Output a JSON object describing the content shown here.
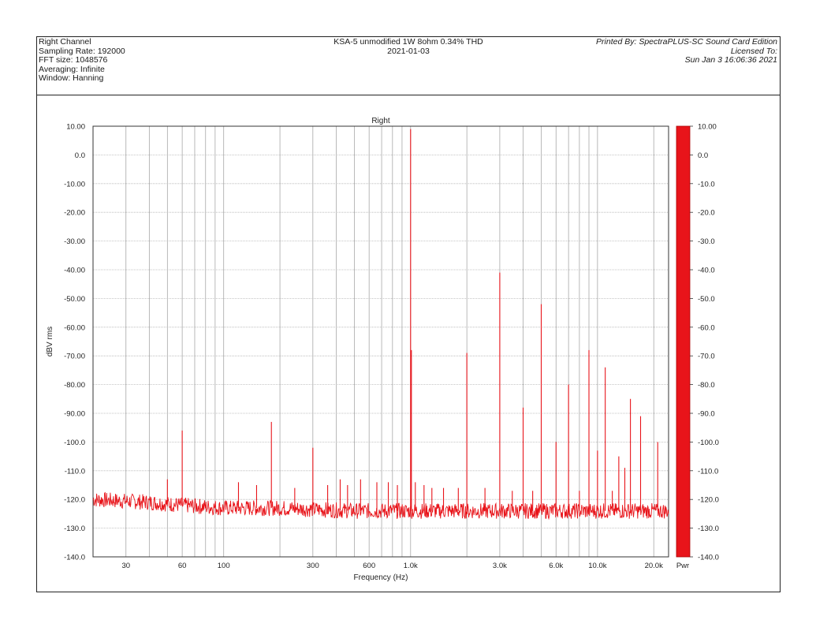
{
  "header": {
    "left": [
      "Right Channel",
      "Sampling Rate: 192000",
      "FFT size: 1048576",
      "Averaging: Infinite",
      "Window: Hanning"
    ],
    "center": [
      "KSA-5 unmodified 1W 8ohm 0.34% THD",
      "2021-01-03"
    ],
    "right": [
      "Printed By: SpectraPLUS-SC Sound Card Edition",
      "Licensed To:",
      "Sun Jan  3 16:06:36 2021"
    ]
  },
  "chart_data": {
    "type": "line",
    "title": "Right",
    "xlabel": "Frequency (Hz)",
    "ylabel": "dBV rms",
    "x_scale": "log",
    "xlim": [
      20,
      24000
    ],
    "ylim": [
      -140,
      10
    ],
    "grid": true,
    "x_ticks": [
      {
        "value": 30,
        "label": "30"
      },
      {
        "value": 60,
        "label": "60"
      },
      {
        "value": 100,
        "label": "100"
      },
      {
        "value": 300,
        "label": "300"
      },
      {
        "value": 600,
        "label": "600"
      },
      {
        "value": 1000,
        "label": "1.0k"
      },
      {
        "value": 3000,
        "label": "3.0k"
      },
      {
        "value": 6000,
        "label": "6.0k"
      },
      {
        "value": 10000,
        "label": "10.0k"
      },
      {
        "value": 20000,
        "label": "20.0k"
      }
    ],
    "y_ticks_left": [
      "10.00",
      "0.0",
      "-10.00",
      "-20.00",
      "-30.00",
      "-40.00",
      "-50.00",
      "-60.00",
      "-70.00",
      "-80.00",
      "-90.00",
      "-100.0",
      "-110.0",
      "-120.0",
      "-130.0",
      "-140.0"
    ],
    "y_ticks_right": [
      "10.00",
      "0.0",
      "-10.0",
      "-20.0",
      "-30.0",
      "-40.0",
      "-50.0",
      "-60.0",
      "-70.0",
      "-80.0",
      "-90.0",
      "-100.0",
      "-110.0",
      "-120.0",
      "-130.0",
      "-140.0"
    ],
    "color_bar_label": "Pwr",
    "line_color": "#e8141a",
    "noise_floor": [
      {
        "x": 20,
        "y": -120
      },
      {
        "x": 40,
        "y": -121
      },
      {
        "x": 60,
        "y": -122
      },
      {
        "x": 100,
        "y": -123
      },
      {
        "x": 200,
        "y": -123
      },
      {
        "x": 500,
        "y": -124
      },
      {
        "x": 1000,
        "y": -124
      },
      {
        "x": 2000,
        "y": -124
      },
      {
        "x": 5000,
        "y": -124
      },
      {
        "x": 10000,
        "y": -124
      },
      {
        "x": 20000,
        "y": -124
      },
      {
        "x": 24000,
        "y": -124
      }
    ],
    "peaks": [
      {
        "x": 50,
        "y": -113
      },
      {
        "x": 60,
        "y": -96
      },
      {
        "x": 120,
        "y": -114
      },
      {
        "x": 150,
        "y": -115
      },
      {
        "x": 180,
        "y": -93
      },
      {
        "x": 240,
        "y": -116
      },
      {
        "x": 300,
        "y": -102
      },
      {
        "x": 360,
        "y": -115
      },
      {
        "x": 420,
        "y": -113
      },
      {
        "x": 460,
        "y": -115
      },
      {
        "x": 540,
        "y": -113
      },
      {
        "x": 660,
        "y": -114
      },
      {
        "x": 760,
        "y": -114
      },
      {
        "x": 850,
        "y": -115
      },
      {
        "x": 1000,
        "y": 9
      },
      {
        "x": 1060,
        "y": -114
      },
      {
        "x": 1180,
        "y": -115
      },
      {
        "x": 1300,
        "y": -116
      },
      {
        "x": 1500,
        "y": -116
      },
      {
        "x": 1800,
        "y": -116
      },
      {
        "x": 2000,
        "y": -69
      },
      {
        "x": 2500,
        "y": -116
      },
      {
        "x": 3000,
        "y": -41
      },
      {
        "x": 3500,
        "y": -117
      },
      {
        "x": 4000,
        "y": -88
      },
      {
        "x": 4500,
        "y": -117
      },
      {
        "x": 5000,
        "y": -52
      },
      {
        "x": 6000,
        "y": -100
      },
      {
        "x": 7000,
        "y": -80
      },
      {
        "x": 8000,
        "y": -117
      },
      {
        "x": 9000,
        "y": -68
      },
      {
        "x": 10000,
        "y": -103
      },
      {
        "x": 11000,
        "y": -74
      },
      {
        "x": 12000,
        "y": -117
      },
      {
        "x": 13000,
        "y": -105
      },
      {
        "x": 14000,
        "y": -109
      },
      {
        "x": 15000,
        "y": -85
      },
      {
        "x": 17000,
        "y": -91
      },
      {
        "x": 21000,
        "y": -100
      }
    ]
  }
}
